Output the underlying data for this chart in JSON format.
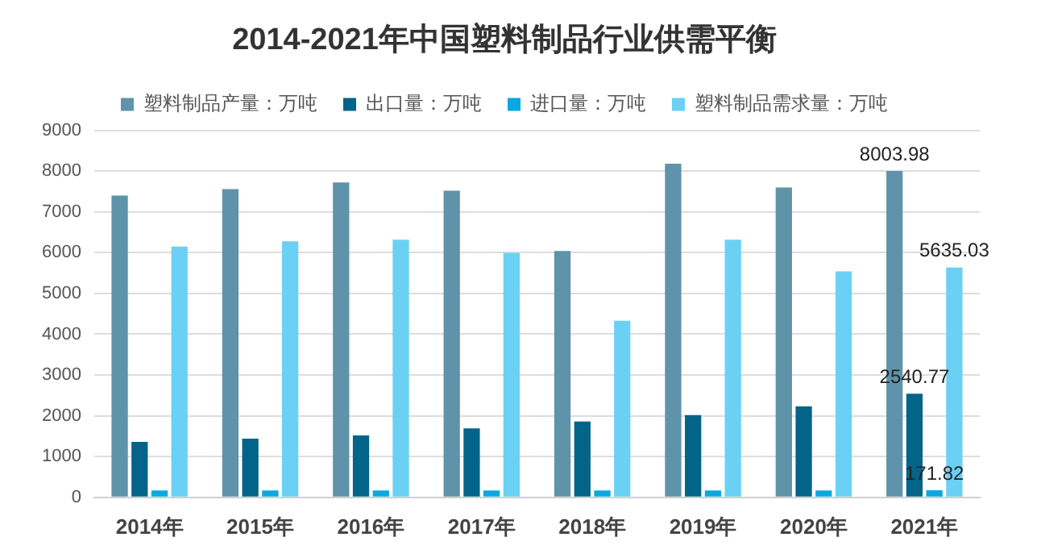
{
  "chart_data": {
    "type": "bar",
    "title": "2014-2021年中国塑料制品行业供需平衡",
    "categories": [
      "2014年",
      "2015年",
      "2016年",
      "2017年",
      "2018年",
      "2019年",
      "2020年",
      "2021年"
    ],
    "series": [
      {
        "name": "塑料制品产量：万吨",
        "color": "#5f93aa",
        "values": [
          7400,
          7560,
          7720,
          7520,
          6040,
          8180,
          7600,
          8003.98
        ],
        "value_labels": [
          null,
          null,
          null,
          null,
          null,
          null,
          null,
          "8003.98"
        ]
      },
      {
        "name": "出口量：万吨",
        "color": "#03648a",
        "values": [
          1360,
          1440,
          1520,
          1690,
          1860,
          2020,
          2230,
          2540.77
        ],
        "value_labels": [
          null,
          null,
          null,
          null,
          null,
          null,
          null,
          "2540.77"
        ]
      },
      {
        "name": "进口量：万吨",
        "color": "#0aa8e0",
        "values": [
          170,
          170,
          170,
          170,
          170,
          170,
          170,
          171.82
        ],
        "value_labels": [
          null,
          null,
          null,
          null,
          null,
          null,
          null,
          "171.82"
        ]
      },
      {
        "name": "塑料制品需求量：万吨",
        "color": "#6ad1f5",
        "values": [
          6150,
          6280,
          6320,
          5990,
          4330,
          6320,
          5540,
          5635.03
        ],
        "value_labels": [
          null,
          null,
          null,
          null,
          null,
          null,
          null,
          "5635.03"
        ]
      }
    ],
    "ylim": [
      0,
      9000
    ],
    "yticks": [
      0,
      1000,
      2000,
      3000,
      4000,
      5000,
      6000,
      7000,
      8000,
      9000
    ],
    "grid": "y",
    "legend": "top"
  }
}
